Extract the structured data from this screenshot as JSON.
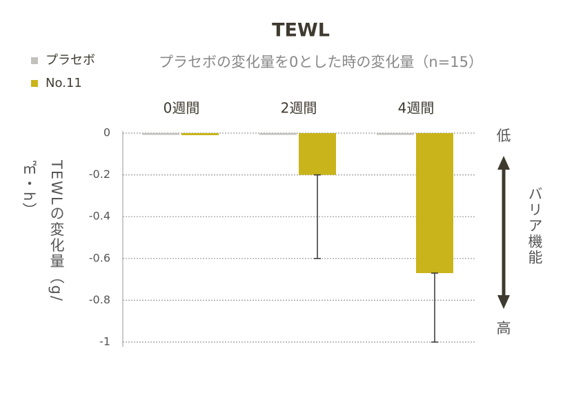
{
  "chart_data": {
    "type": "bar",
    "title": "TEWL",
    "subtitle": "プラセボの変化量を0とした時の変化量（n=15）",
    "y_label": "TEWLの変化量（g/㎡・h）",
    "categories": [
      "0週間",
      "2週間",
      "4週間"
    ],
    "series": [
      {
        "name": "プラセボ",
        "color": "#c2c1bc",
        "values": [
          0,
          0,
          0
        ]
      },
      {
        "name": "No.11",
        "color": "#c9b41b",
        "values": [
          -0.01,
          -0.2,
          -0.67
        ],
        "errors": [
          null,
          0.4,
          0.33
        ]
      }
    ],
    "ylim": [
      -1,
      0
    ],
    "yticks": [
      0,
      -0.2,
      -0.4,
      -0.6,
      -0.8,
      -1
    ],
    "grid": true,
    "annotations": {
      "top": "低",
      "bottom": "高",
      "side": "バリア機能"
    }
  }
}
